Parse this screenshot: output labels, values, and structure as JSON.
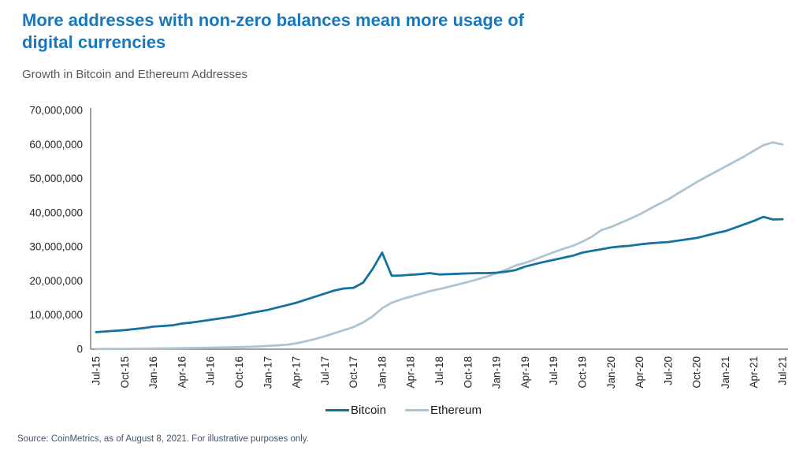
{
  "header": {
    "title": "More addresses with non-zero balances mean more usage of digital currencies",
    "subtitle": "Growth in Bitcoin and Ethereum Addresses"
  },
  "footer": {
    "source": "Source: CoinMetrics, as of August 8, 2021.  For illustrative purposes only."
  },
  "colors": {
    "title": "#1878BC",
    "subtitle": "#595959",
    "axis": "#808080",
    "tick_text": "#262626",
    "source_text": "#44546A",
    "bitcoin": "#15719F",
    "ethereum": "#AEC4D3"
  },
  "chart_data": {
    "type": "line",
    "title": "Growth in Bitcoin and Ethereum Addresses",
    "xlabel": "",
    "ylabel": "",
    "ylim": [
      0,
      70000000
    ],
    "grid": false,
    "legend_position": "bottom-center",
    "x_unit": "monthly from Jul-2015 to Jul-2021",
    "values_unit": "millions of addresses",
    "x_tick_labels": [
      "Jul-15",
      "Oct-15",
      "Jan-16",
      "Apr-16",
      "Jul-16",
      "Oct-16",
      "Jan-17",
      "Apr-17",
      "Jul-17",
      "Oct-17",
      "Jan-18",
      "Apr-18",
      "Jul-18",
      "Oct-18",
      "Jan-19",
      "Apr-19",
      "Jul-19",
      "Oct-19",
      "Jan-20",
      "Apr-20",
      "Jul-20",
      "Oct-20",
      "Jan-21",
      "Apr-21",
      "Jul-21"
    ],
    "y_tick_labels": [
      "0",
      "10,000,000",
      "20,000,000",
      "30,000,000",
      "40,000,000",
      "50,000,000",
      "60,000,000",
      "70,000,000"
    ],
    "series": [
      {
        "name": "Bitcoin",
        "color": "#15719F",
        "values": [
          5.0,
          5.2,
          5.4,
          5.6,
          5.9,
          6.2,
          6.6,
          6.8,
          7.0,
          7.5,
          7.8,
          8.2,
          8.6,
          9.0,
          9.4,
          9.9,
          10.5,
          11.0,
          11.5,
          12.2,
          12.9,
          13.6,
          14.5,
          15.4,
          16.3,
          17.2,
          17.8,
          18.0,
          19.5,
          23.5,
          28.3,
          21.5,
          21.6,
          21.8,
          22.0,
          22.3,
          21.9,
          22.0,
          22.1,
          22.2,
          22.3,
          22.3,
          22.4,
          22.7,
          23.2,
          24.2,
          24.9,
          25.6,
          26.2,
          26.8,
          27.4,
          28.3,
          28.8,
          29.3,
          29.8,
          30.1,
          30.3,
          30.7,
          31.0,
          31.2,
          31.4,
          31.8,
          32.2,
          32.6,
          33.3,
          34.0,
          34.6,
          35.6,
          36.6,
          37.6,
          38.8,
          38.0,
          38.1
        ]
      },
      {
        "name": "Ethereum",
        "color": "#AEC4D3",
        "values": [
          0.05,
          0.06,
          0.08,
          0.1,
          0.12,
          0.15,
          0.18,
          0.22,
          0.26,
          0.3,
          0.35,
          0.4,
          0.45,
          0.5,
          0.55,
          0.6,
          0.7,
          0.8,
          0.95,
          1.1,
          1.3,
          1.7,
          2.3,
          3.0,
          3.8,
          4.7,
          5.6,
          6.5,
          7.8,
          9.6,
          12.0,
          13.6,
          14.6,
          15.4,
          16.2,
          17.0,
          17.6,
          18.3,
          19.0,
          19.7,
          20.5,
          21.3,
          22.3,
          23.3,
          24.5,
          25.3,
          26.3,
          27.4,
          28.4,
          29.4,
          30.3,
          31.5,
          33.0,
          34.9,
          35.8,
          37.0,
          38.2,
          39.5,
          41.0,
          42.5,
          43.9,
          45.6,
          47.3,
          49.0,
          50.5,
          52.0,
          53.5,
          55.0,
          56.5,
          58.2,
          59.8,
          60.6,
          60.0
        ]
      }
    ]
  }
}
